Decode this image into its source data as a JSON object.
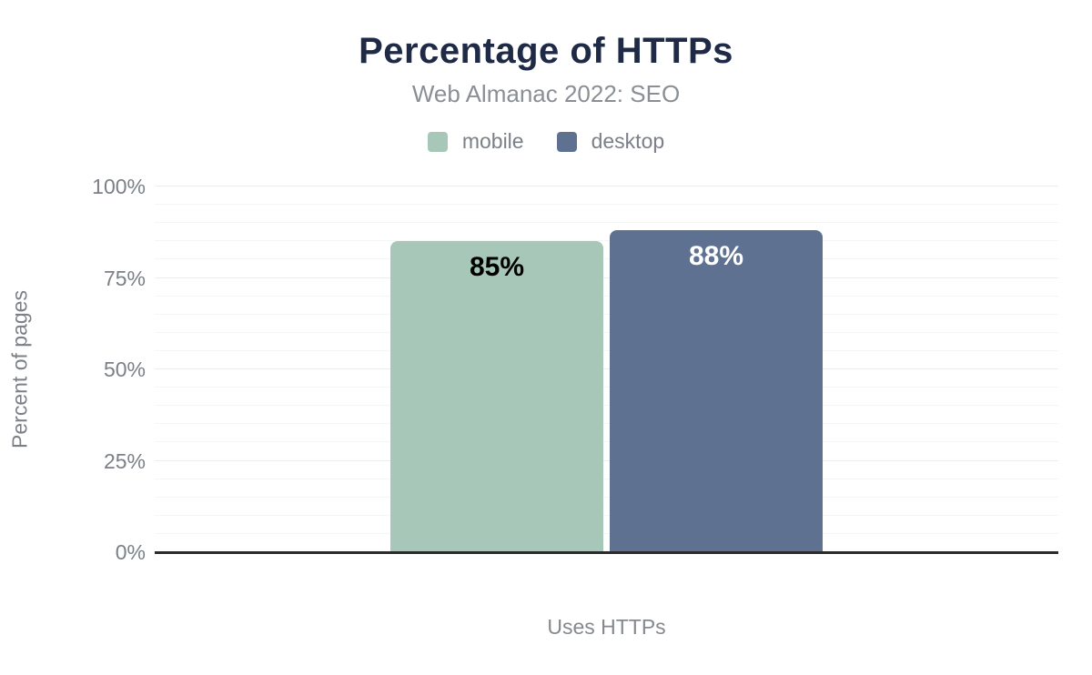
{
  "header": {
    "title": "Percentage of HTTPs",
    "subtitle": "Web Almanac 2022: SEO"
  },
  "legend": {
    "items": [
      {
        "label": "mobile",
        "color": "#a7c8b8"
      },
      {
        "label": "desktop",
        "color": "#5f7190"
      }
    ]
  },
  "chart_data": {
    "type": "bar",
    "title": "Percentage of HTTPs",
    "subtitle": "Web Almanac 2022: SEO",
    "categories": [
      "Uses HTTPs"
    ],
    "series": [
      {
        "name": "mobile",
        "values": [
          85
        ],
        "data_labels": [
          "85%"
        ],
        "color": "#a7c8b8",
        "label_color": "#000000"
      },
      {
        "name": "desktop",
        "values": [
          88
        ],
        "data_labels": [
          "88%"
        ],
        "color": "#5f7190",
        "label_color": "#ffffff"
      }
    ],
    "xlabel": "Uses HTTPs",
    "ylabel": "Percent of pages",
    "ylim": [
      0,
      100
    ],
    "yticks": [
      {
        "value": 0,
        "label": "0%"
      },
      {
        "value": 25,
        "label": "25%"
      },
      {
        "value": 50,
        "label": "50%"
      },
      {
        "value": 75,
        "label": "75%"
      },
      {
        "value": 100,
        "label": "100%"
      }
    ],
    "grid": {
      "minor_step": 5,
      "major_step": 25,
      "visible": true
    },
    "legend_position": "top"
  },
  "colors": {
    "title": "#1f2a47",
    "subtitle": "#8a8f95",
    "axis_text": "#7b8087",
    "axis_line": "#2b2b2b",
    "grid_major": "#ececec",
    "grid_minor": "#f5f5f5",
    "background": "#ffffff"
  }
}
